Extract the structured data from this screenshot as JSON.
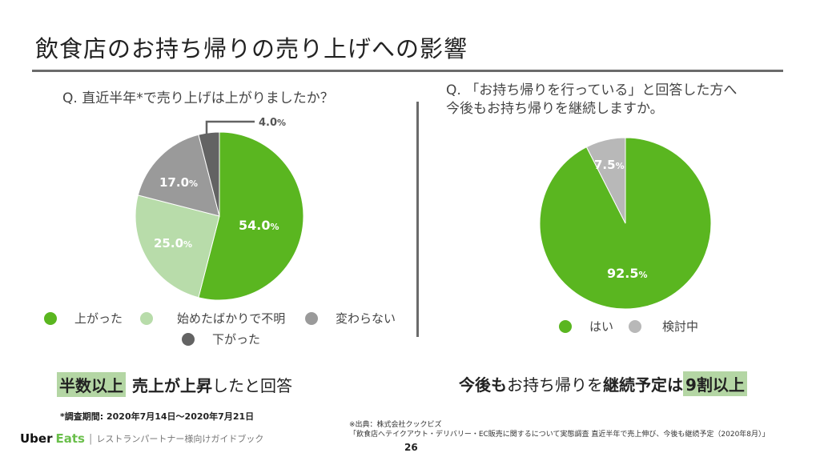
{
  "title": "飲食店のお持ち帰りの売り上げへの影響",
  "colors": {
    "green": "#5ab620",
    "light_green": "#b8dcaa",
    "gray": "#9a9a9a",
    "dark_gray": "#636363",
    "light_gray": "#b8b8b8",
    "highlight": "#b4d6a4",
    "rule": "#6b6b6b"
  },
  "chart_data": [
    {
      "type": "pie",
      "title": "Q. 直近半年*で売り上げは上がりましたか？",
      "categories": [
        "上がった",
        "始めたばかりで不明",
        "変わらない",
        "下がった"
      ],
      "values": [
        54.0,
        25.0,
        17.0,
        4.0
      ],
      "labels": [
        "54.0",
        "25.0",
        "17.0",
        "4.0"
      ],
      "unit": "%",
      "colors": [
        "#5ab620",
        "#b8dcaa",
        "#9a9a9a",
        "#636363"
      ],
      "start": "12 o'clock",
      "direction": "clockwise",
      "legend": "bottom"
    },
    {
      "type": "pie",
      "title": "Q. 「お持ち帰りを行っている」と回答した方へ 今後もお持ち帰りを継続しますか。",
      "title_lines": [
        "Q. 「お持ち帰りを行っている」と回答した方へ",
        "今後もお持ち帰りを継続しますか。"
      ],
      "categories": [
        "はい",
        "検討中"
      ],
      "values": [
        92.5,
        7.5
      ],
      "labels": [
        "92.5",
        "7.5"
      ],
      "unit": "%",
      "colors": [
        "#5ab620",
        "#b8b8b8"
      ],
      "start": "12 o'clock",
      "direction": "clockwise",
      "legend": "bottom"
    }
  ],
  "summary_left": {
    "highlight": "半数以上",
    "bold": "売上が上昇",
    "rest": "したと回答"
  },
  "summary_right": {
    "bold1": "今後も",
    "normal": "お持ち帰りを",
    "bold2": "継続予定は",
    "highlight": "9割以上"
  },
  "footer": {
    "survey_period": "*調査期間: 2020年7月14日～2020年7月21日",
    "brand_uber": "Uber",
    "brand_eats": "Eats",
    "brand_sep": "|",
    "brand_sub": "レストランパートナー様向けガイドブック",
    "source_line1": "※出典：株式会社クックビズ",
    "source_line2": "「飲食店へテイクアウト・デリバリー・EC販売に関するについて実態調査 直近半年で売上伸び、今後も継続予定（2020年8月）」",
    "page_number": "26"
  }
}
